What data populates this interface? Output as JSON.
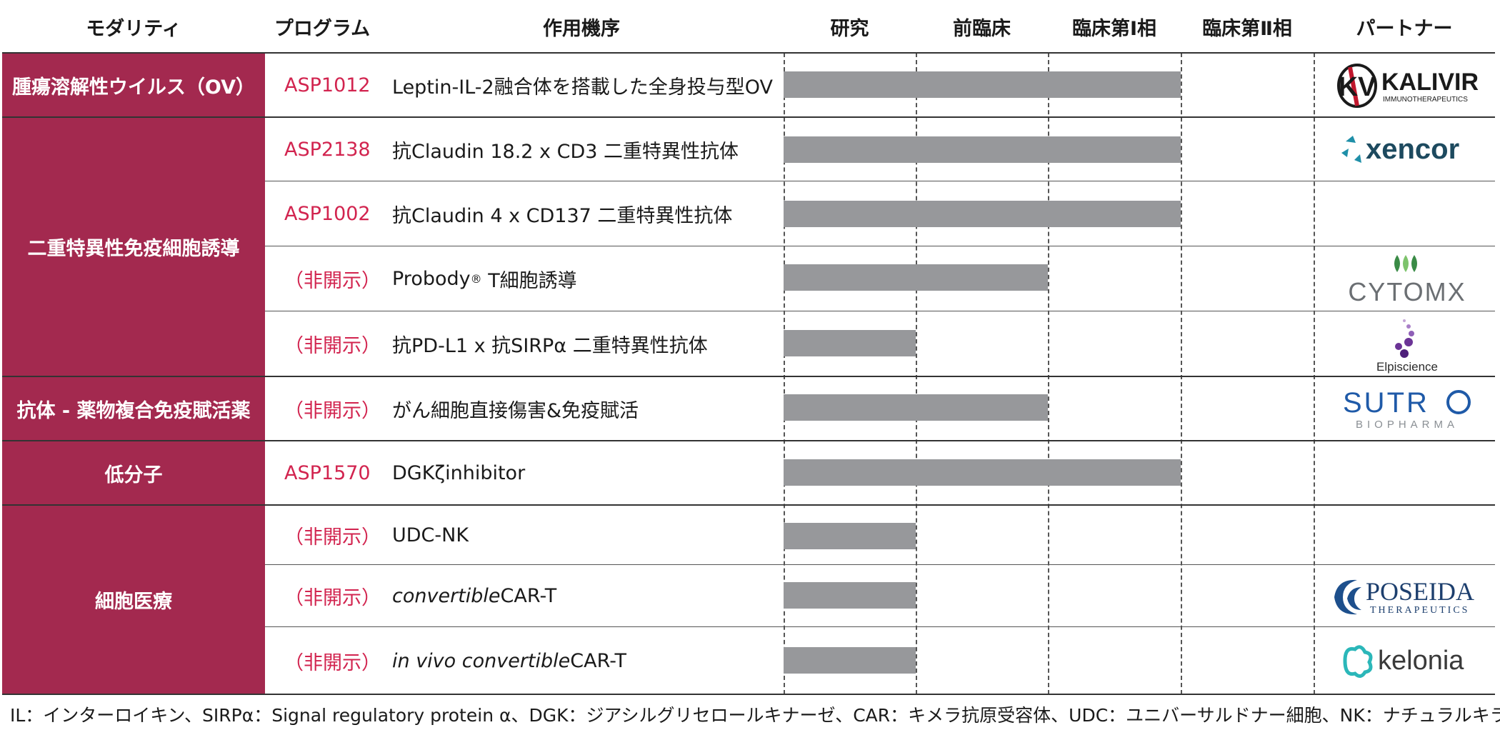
{
  "headers": {
    "modality": "モダリティ",
    "program": "プログラム",
    "mechanism": "作用機序",
    "research": "研究",
    "preclinical": "前臨床",
    "phase1": "臨床第Ⅰ相",
    "phase2": "臨床第Ⅱ相",
    "partner": "パートナー"
  },
  "modalities": [
    {
      "label": "腫瘍溶解性ウイルス（OV）"
    },
    {
      "label": "二重特異性免疫細胞誘導"
    },
    {
      "label": "抗体 - 薬物複合免疫賦活薬"
    },
    {
      "label": "低分子"
    },
    {
      "label": "細胞医療"
    }
  ],
  "rows": [
    {
      "program": "ASP1012",
      "mechanism": "Leptin-IL-2融合体を搭載した全身投与型OV",
      "stage_progress": 3,
      "partner": "kalivir-logo"
    },
    {
      "program": "ASP2138",
      "mechanism": "抗Claudin 18.2 x CD3 二重特異性抗体",
      "stage_progress": 3,
      "partner": "xencor-logo"
    },
    {
      "program": "ASP1002",
      "mechanism": "抗Claudin 4 x CD137 二重特異性抗体",
      "stage_progress": 3,
      "partner": ""
    },
    {
      "program": "（非開示）",
      "mechanism_pre": "Probody",
      "mechanism_sup": "®",
      "mechanism_post": " T細胞誘導",
      "stage_progress": 2,
      "partner": "cytomx-logo"
    },
    {
      "program": "（非開示）",
      "mechanism": "抗PD-L1 x 抗SIRPα 二重特異性抗体",
      "stage_progress": 1,
      "partner": "elpiscience-logo"
    },
    {
      "program": "（非開示）",
      "mechanism": "がん細胞直接傷害&免疫賦活",
      "stage_progress": 2,
      "partner": "sutro-logo"
    },
    {
      "program": "ASP1570",
      "mechanism": "DGKζinhibitor",
      "stage_progress": 3,
      "partner": ""
    },
    {
      "program": "（非開示）",
      "mechanism": "UDC-NK",
      "stage_progress": 1,
      "partner": ""
    },
    {
      "program": "（非開示）",
      "mechanism_italic": "convertible",
      "mechanism_post": "CAR-T",
      "stage_progress": 1,
      "partner": "poseida-logo"
    },
    {
      "program": "（非開示）",
      "mechanism_italic": "in vivo convertible",
      "mechanism_post": "CAR-T",
      "stage_progress": 1,
      "partner": "kelonia-logo"
    }
  ],
  "logos": {
    "kalivir": {
      "word": "KALIVIR",
      "sub": "IMMUNOTHERAPEUTICS",
      "mark": "KV"
    },
    "xencor": {
      "word": "xencor"
    },
    "cytomx": {
      "word": "CYTOMX"
    },
    "elpiscience": {
      "word": "Elpiscience"
    },
    "sutro": {
      "word": "SUTR",
      "sub": "BIOPHARMA"
    },
    "poseida": {
      "word": "POSEIDA",
      "sub": "THERAPEUTICS"
    },
    "kelonia": {
      "word": "kelonia"
    }
  },
  "colors": {
    "modality_bg": "#a3294f",
    "program_text": "#d2244f",
    "bar": "#97989b"
  },
  "footnote": "IL：インターロイキン、SIRPα：Signal regulatory protein α、DGK：ジアシルグリセロールキナーゼ、CAR：キメラ抗原受容体、UDC：ユニバーサルドナー細胞、NK：ナチュラルキラー"
}
